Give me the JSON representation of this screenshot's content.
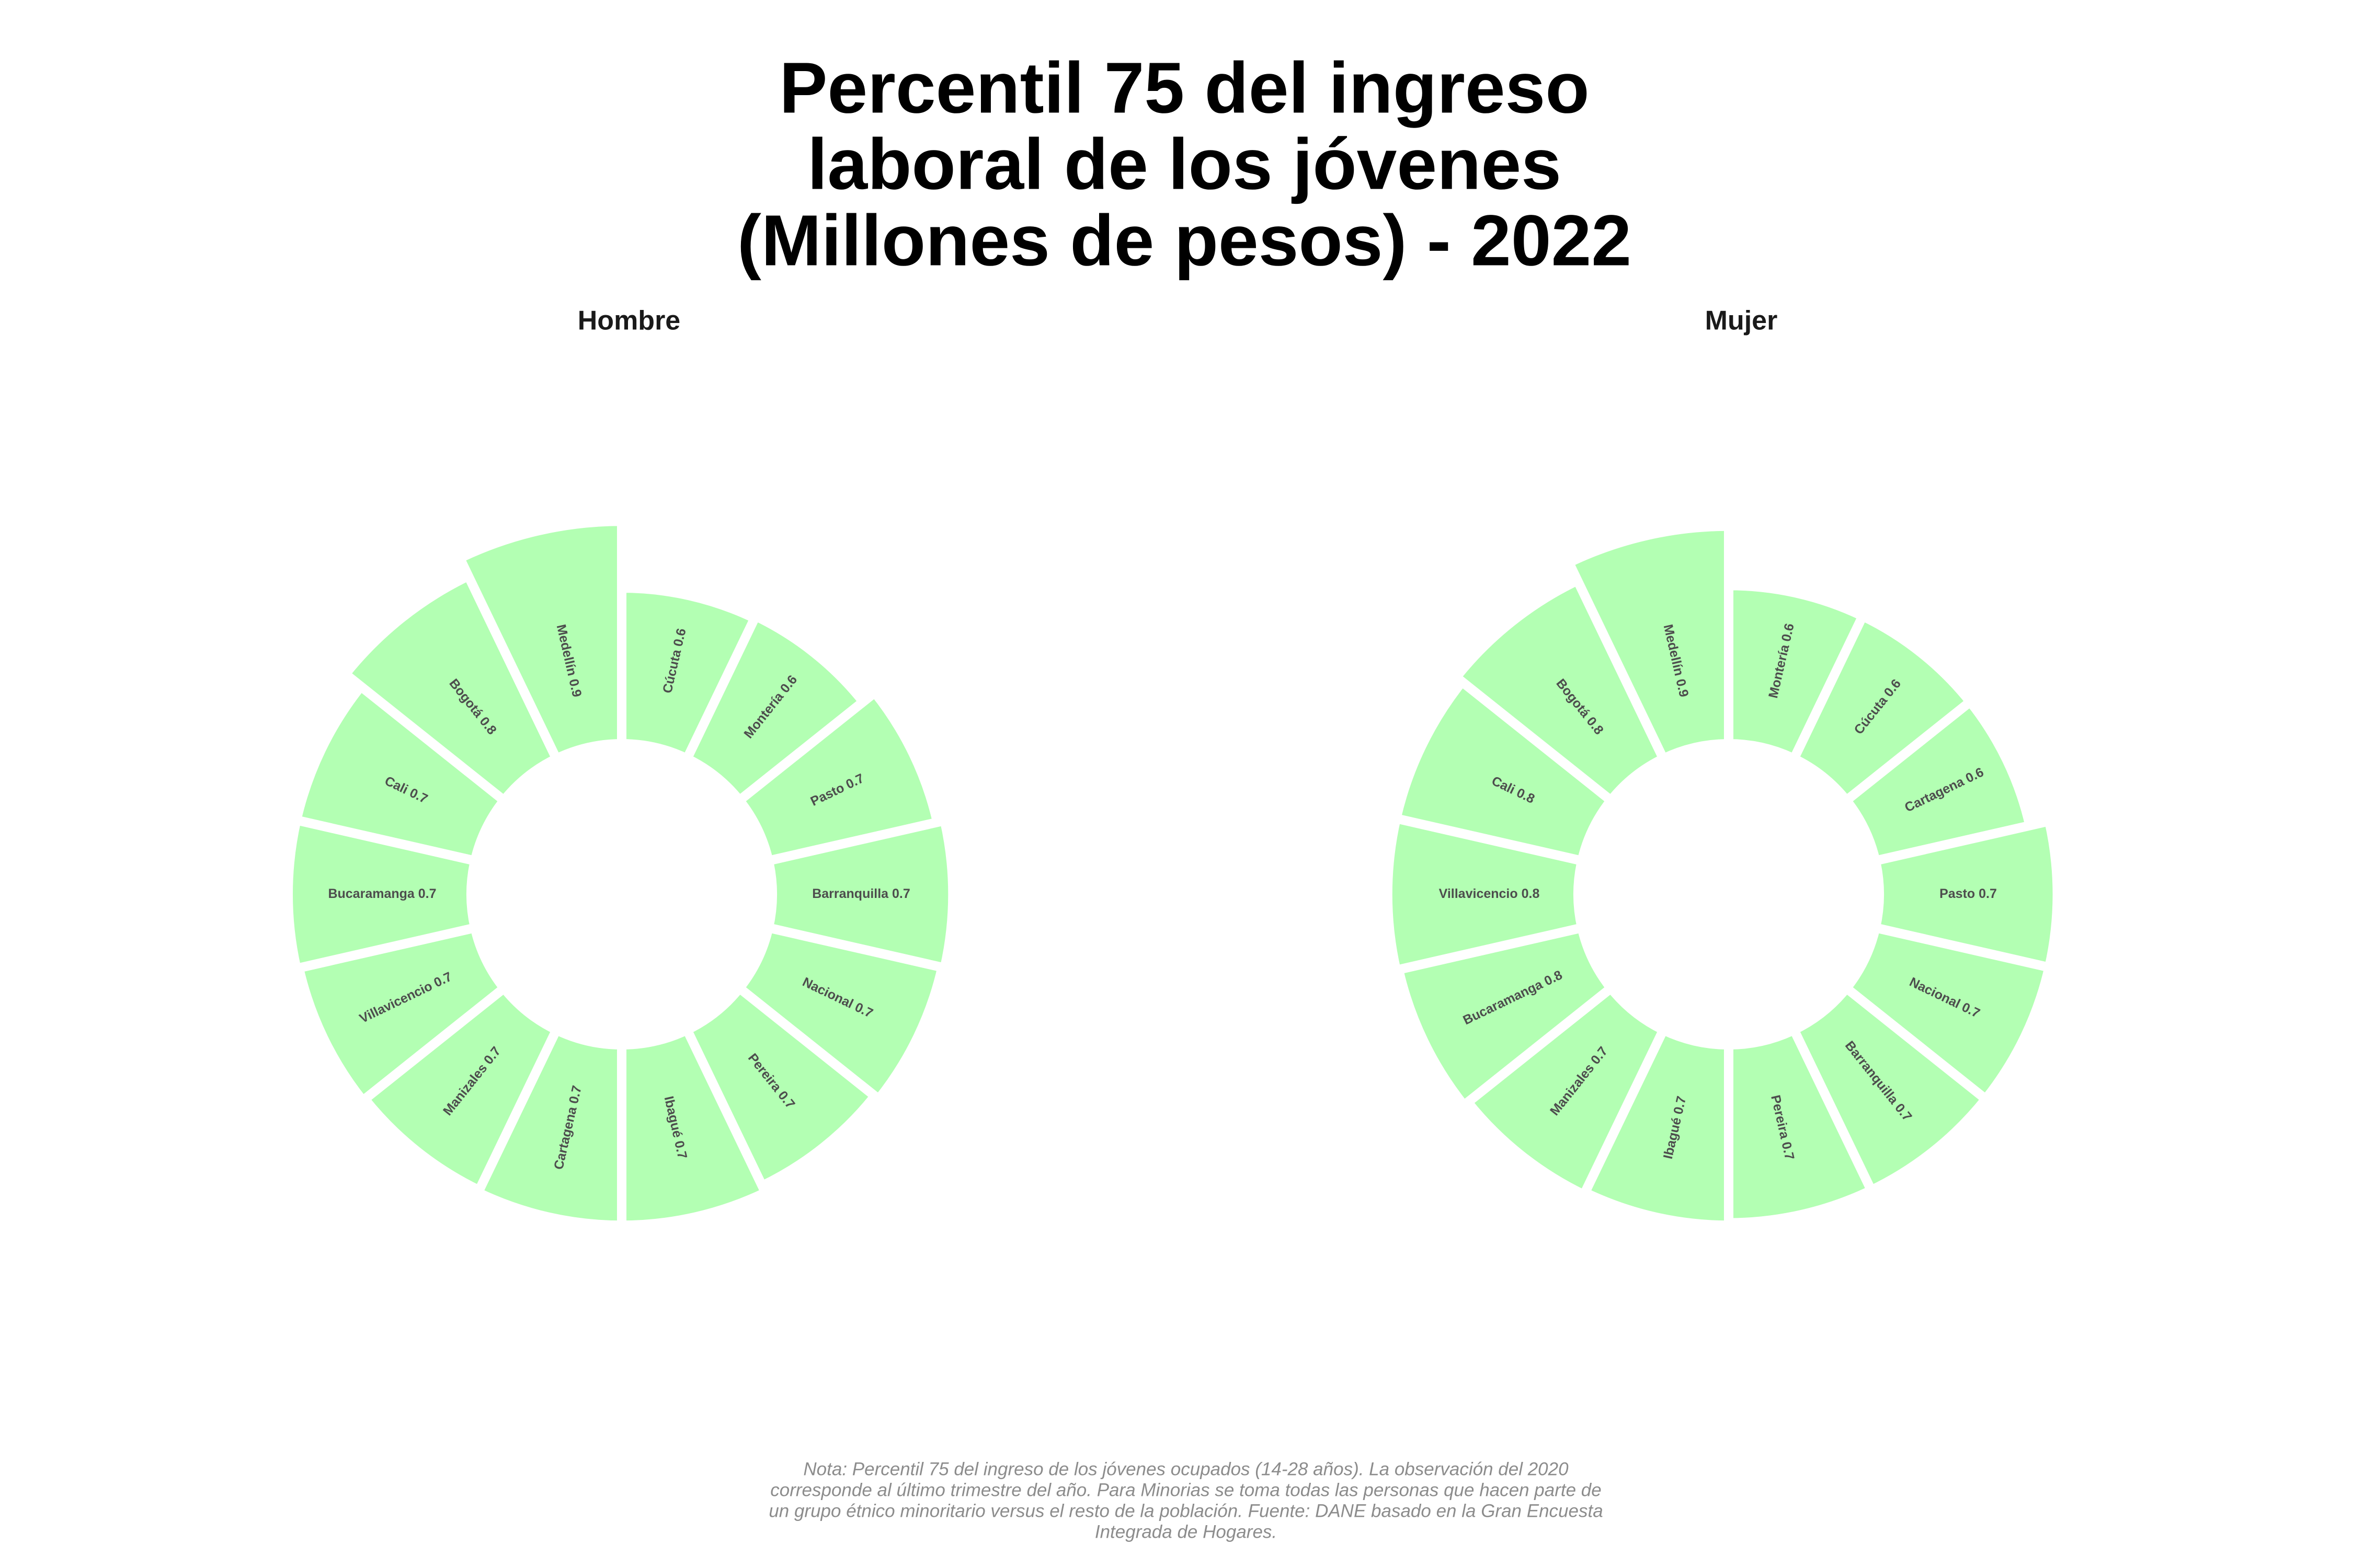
{
  "title": [
    "Percentil 75 del ingreso",
    "laboral de los jóvenes",
    "(Millones de pesos) - 2022"
  ],
  "note": [
    "Nota: Percentil 75 del ingreso de los jóvenes ocupados (14-28 años). La observación del 2020",
    "corresponde al último trimestre del año. Para Minorias se toma todas las personas que hacen parte de",
    "un grupo étnico minoritario versus el resto de la población. Fuente: DANE basado en la Gran Encuesta",
    "Integrada de Hogares."
  ],
  "chart_data": [
    {
      "type": "bar",
      "polar": true,
      "title": "Hombre",
      "color": "#b3ffb3",
      "categories": [
        "Cúcuta",
        "Montería",
        "Pasto",
        "Barranquilla",
        "Nacional",
        "Pereira",
        "Ibagué",
        "Cartagena",
        "Manizales",
        "Villavicencio",
        "Bucaramanga",
        "Cali",
        "Bogotá",
        "Medellín"
      ],
      "values": [
        0.63,
        0.64,
        0.7,
        0.73,
        0.72,
        0.7,
        0.73,
        0.73,
        0.72,
        0.73,
        0.74,
        0.74,
        0.82,
        0.9
      ],
      "value_labels": [
        "0.6",
        "0.6",
        "0.7",
        "0.7",
        "0.7",
        "0.7",
        "0.7",
        "0.7",
        "0.7",
        "0.7",
        "0.7",
        "0.7",
        "0.8",
        "0.9"
      ]
    },
    {
      "type": "bar",
      "polar": true,
      "title": "Mujer",
      "color": "#b3ffb3",
      "categories": [
        "Montería",
        "Cúcuta",
        "Cartagena",
        "Pasto",
        "Nacional",
        "Barranquilla",
        "Pereira",
        "Ibagué",
        "Manizales",
        "Bucaramanga",
        "Villavicencio",
        "Cali",
        "Bogotá",
        "Medellín"
      ],
      "values": [
        0.64,
        0.64,
        0.64,
        0.72,
        0.72,
        0.72,
        0.72,
        0.73,
        0.74,
        0.76,
        0.77,
        0.77,
        0.8,
        0.88
      ],
      "value_labels": [
        "0.6",
        "0.6",
        "0.6",
        "0.7",
        "0.7",
        "0.7",
        "0.7",
        "0.7",
        "0.7",
        "0.8",
        "0.8",
        "0.8",
        "0.8",
        "0.9"
      ]
    }
  ]
}
